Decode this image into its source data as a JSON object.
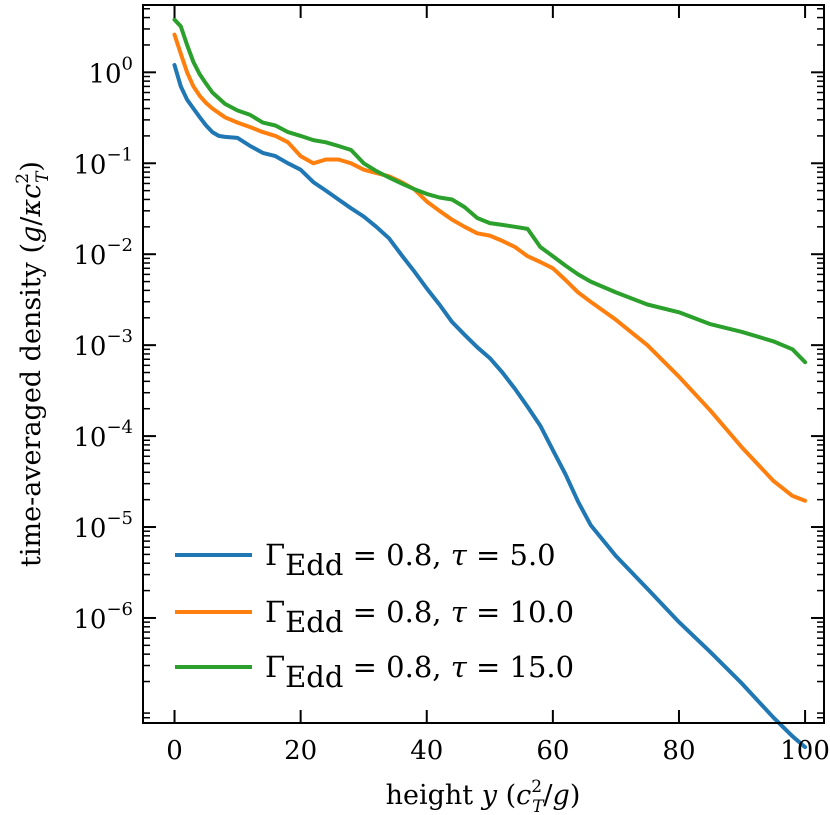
{
  "chart_data": {
    "type": "line",
    "title": "",
    "xlabel": "height y (c_T²/g)",
    "xlabel_parts": {
      "prefix": "height ",
      "var": "y",
      "open": " (",
      "c": "c",
      "sup": "2",
      "sub": "T",
      "tail": "/",
      "g": "g",
      "close": ")"
    },
    "ylabel": "time-averaged density (g/κc_T²)",
    "ylabel_parts": {
      "prefix": "time-averaged density (",
      "g": "g",
      "slash": "/",
      "kappa": "κ",
      "c": "c",
      "sup": "2",
      "sub": "T",
      "close": ")"
    },
    "xscale": "linear",
    "yscale": "log",
    "xlim": [
      -5,
      103
    ],
    "ylim": [
      7e-08,
      5.5
    ],
    "xticks": [
      {
        "value": 0,
        "label": "0"
      },
      {
        "value": 20,
        "label": "20"
      },
      {
        "value": 40,
        "label": "40"
      },
      {
        "value": 60,
        "label": "60"
      },
      {
        "value": 80,
        "label": "80"
      },
      {
        "value": 100,
        "label": "100"
      }
    ],
    "yticks": [
      {
        "exp": 0,
        "base": "10",
        "sup": "0"
      },
      {
        "exp": -1,
        "base": "10",
        "sup": "−1"
      },
      {
        "exp": -2,
        "base": "10",
        "sup": "−2"
      },
      {
        "exp": -3,
        "base": "10",
        "sup": "−3"
      },
      {
        "exp": -4,
        "base": "10",
        "sup": "−4"
      },
      {
        "exp": -5,
        "base": "10",
        "sup": "−5"
      },
      {
        "exp": -6,
        "base": "10",
        "sup": "−6"
      }
    ],
    "grid": false,
    "legend_position": "lower-left",
    "series": [
      {
        "name": "Γ_Edd = 0.8, τ = 5.0",
        "label_parts": {
          "gamma": "Γ",
          "sub": "Edd",
          "mid": " = 0.8, ",
          "tau": "τ",
          "rest": " = 5.0"
        },
        "color": "#1f77b4",
        "x": [
          0,
          1,
          2,
          3,
          4,
          5,
          6,
          7,
          8,
          10,
          12,
          14,
          16,
          18,
          20,
          22,
          24,
          26,
          28,
          30,
          32,
          34,
          36,
          38,
          40,
          42,
          44,
          46,
          48,
          50,
          52,
          54,
          56,
          58,
          60,
          62,
          64,
          66,
          70,
          75,
          80,
          85,
          90,
          95,
          98,
          100
        ],
        "y": [
          1.2,
          0.7,
          0.5,
          0.4,
          0.32,
          0.26,
          0.22,
          0.2,
          0.195,
          0.19,
          0.155,
          0.13,
          0.12,
          0.1,
          0.085,
          0.062,
          0.05,
          0.04,
          0.032,
          0.026,
          0.02,
          0.015,
          0.0098,
          0.0065,
          0.0042,
          0.0028,
          0.0018,
          0.0013,
          0.00095,
          0.00072,
          0.0005,
          0.00033,
          0.00021,
          0.00013,
          7e-05,
          3.8e-05,
          1.9e-05,
          1.05e-05,
          4.8e-06,
          2.1e-06,
          9e-07,
          4.2e-07,
          1.9e-07,
          8e-08,
          5e-08,
          3.8e-08
        ]
      },
      {
        "name": "Γ_Edd = 0.8, τ = 10.0",
        "label_parts": {
          "gamma": "Γ",
          "sub": "Edd",
          "mid": " = 0.8, ",
          "tau": "τ",
          "rest": " = 10.0"
        },
        "color": "#ff7f0e",
        "x": [
          0,
          1,
          2,
          3,
          4,
          5,
          6,
          8,
          10,
          12,
          14,
          16,
          18,
          20,
          22,
          24,
          26,
          28,
          30,
          32,
          34,
          36,
          38,
          40,
          42,
          44,
          46,
          48,
          50,
          52,
          54,
          56,
          58,
          60,
          62,
          64,
          66,
          70,
          75,
          80,
          85,
          90,
          95,
          98,
          100
        ],
        "y": [
          2.6,
          1.6,
          1.0,
          0.7,
          0.55,
          0.46,
          0.4,
          0.32,
          0.28,
          0.25,
          0.22,
          0.2,
          0.17,
          0.12,
          0.1,
          0.11,
          0.11,
          0.1,
          0.085,
          0.078,
          0.072,
          0.062,
          0.052,
          0.038,
          0.03,
          0.024,
          0.02,
          0.017,
          0.016,
          0.014,
          0.012,
          0.0095,
          0.0082,
          0.007,
          0.0052,
          0.0038,
          0.003,
          0.0019,
          0.001,
          0.00045,
          0.00019,
          7.5e-05,
          3.2e-05,
          2.2e-05,
          1.95e-05
        ]
      },
      {
        "name": "Γ_Edd = 0.8, τ = 15.0",
        "label_parts": {
          "gamma": "Γ",
          "sub": "Edd",
          "mid": " = 0.8, ",
          "tau": "τ",
          "rest": " = 15.0"
        },
        "color": "#2ca02c",
        "x": [
          0,
          1,
          2,
          3,
          4,
          5,
          6,
          8,
          10,
          12,
          14,
          16,
          18,
          20,
          22,
          24,
          26,
          28,
          30,
          32,
          34,
          36,
          38,
          40,
          42,
          44,
          46,
          48,
          50,
          52,
          54,
          56,
          58,
          60,
          62,
          64,
          66,
          70,
          75,
          80,
          85,
          90,
          95,
          98,
          100
        ],
        "y": [
          3.8,
          3.2,
          2.0,
          1.3,
          0.95,
          0.75,
          0.6,
          0.45,
          0.38,
          0.34,
          0.28,
          0.26,
          0.22,
          0.2,
          0.18,
          0.17,
          0.155,
          0.14,
          0.1,
          0.082,
          0.07,
          0.06,
          0.052,
          0.046,
          0.042,
          0.04,
          0.033,
          0.025,
          0.022,
          0.021,
          0.02,
          0.019,
          0.012,
          0.0095,
          0.0075,
          0.006,
          0.005,
          0.0038,
          0.0028,
          0.0023,
          0.0017,
          0.0014,
          0.0011,
          0.0009,
          0.00065
        ]
      }
    ]
  }
}
